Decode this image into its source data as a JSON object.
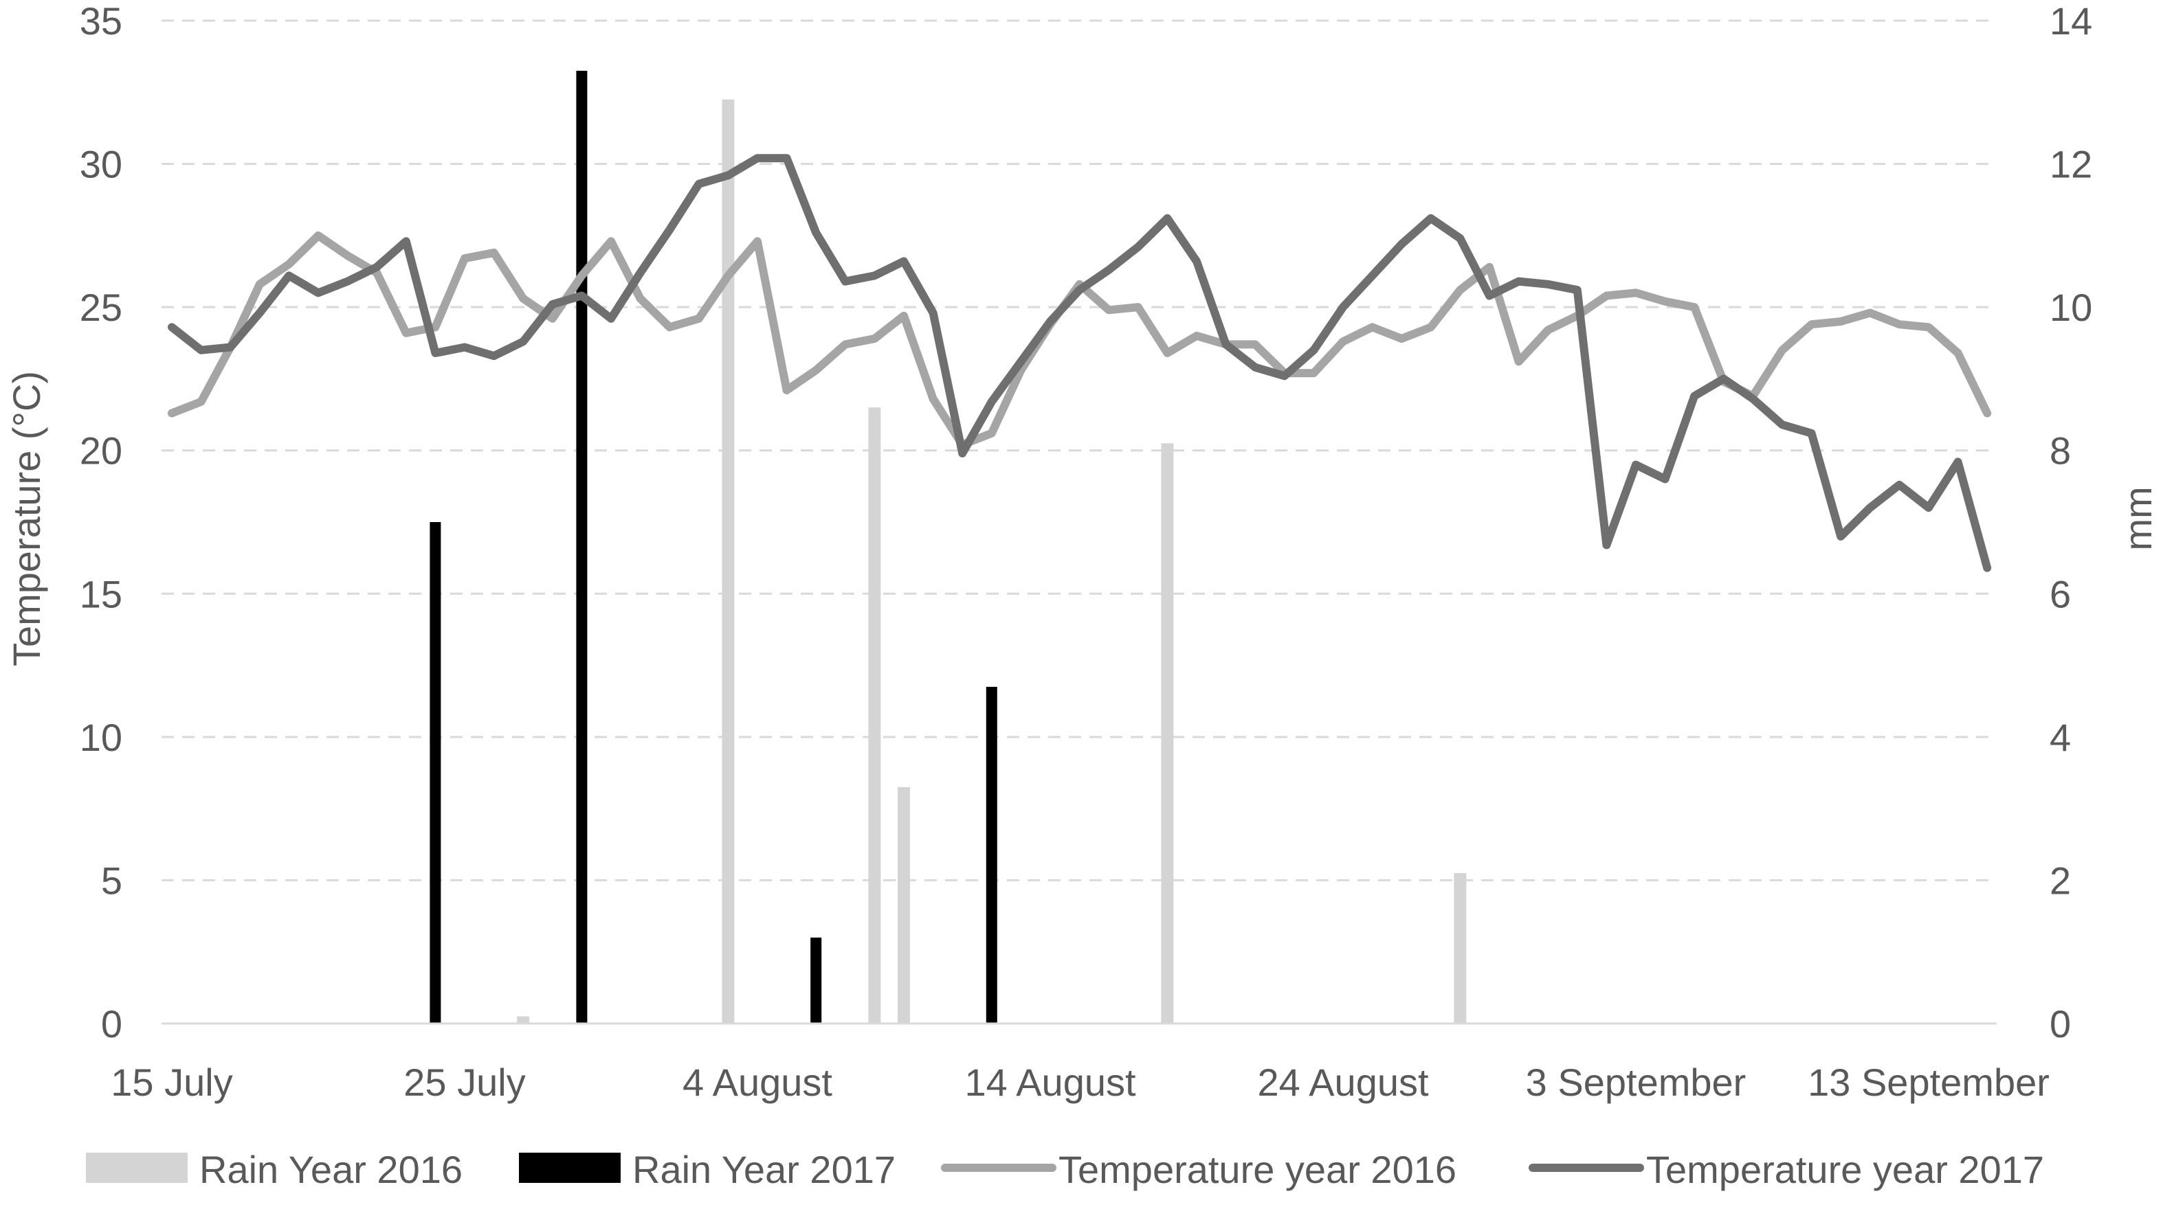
{
  "chart_data": {
    "type": "bar+line",
    "title": "",
    "x_axis": {
      "tick_labels": [
        "15 July",
        "25 July",
        "4 August",
        "14 August",
        "24 August",
        "3 September",
        "13 September"
      ],
      "start_date": "15 July",
      "days": 62
    },
    "y_left": {
      "label": "Temperature (°C)",
      "range": [
        0,
        35
      ],
      "ticks": [
        "0",
        "5",
        "10",
        "15",
        "20",
        "25",
        "30",
        "35"
      ]
    },
    "y_right": {
      "label": "mm",
      "range": [
        0,
        14
      ],
      "ticks": [
        "0",
        "2",
        "4",
        "6",
        "8",
        "10",
        "12",
        "14"
      ]
    },
    "grid": "horizontal dashed",
    "legend": {
      "position": "bottom",
      "items": [
        {
          "label": "Rain Year 2016",
          "kind": "bar",
          "color": "#d4d4d4"
        },
        {
          "label": "Rain Year 2017",
          "kind": "bar",
          "color": "#000000"
        },
        {
          "label": "Temperature year 2016",
          "kind": "line",
          "color": "#a5a5a5"
        },
        {
          "label": "Temperature year 2017",
          "kind": "line",
          "color": "#6f6f6f"
        }
      ]
    },
    "series": [
      {
        "name": "Rain Year 2016",
        "kind": "bar",
        "axis": "right",
        "color": "#d4d4d4",
        "points": [
          {
            "date": "27 July",
            "mm": 0.1
          },
          {
            "date": "3 August",
            "mm": 12.9
          },
          {
            "date": "8 August",
            "mm": 8.6
          },
          {
            "date": "9 August",
            "mm": 3.3
          },
          {
            "date": "18 August",
            "mm": 8.1
          },
          {
            "date": "28 August",
            "mm": 2.1
          }
        ]
      },
      {
        "name": "Rain Year 2017",
        "kind": "bar",
        "axis": "right",
        "color": "#000000",
        "points": [
          {
            "date": "24 July",
            "mm": 7.0
          },
          {
            "date": "29 July",
            "mm": 13.3
          },
          {
            "date": "6 August",
            "mm": 1.2
          },
          {
            "date": "12 August",
            "mm": 4.7
          }
        ]
      },
      {
        "name": "Temperature year 2016",
        "kind": "line",
        "axis": "left",
        "color": "#a5a5a5",
        "values": [
          21.3,
          21.7,
          23.6,
          25.8,
          26.5,
          27.5,
          26.8,
          26.2,
          24.1,
          24.3,
          26.7,
          26.9,
          25.3,
          24.6,
          26.1,
          27.3,
          25.3,
          24.3,
          24.6,
          26.1,
          27.3,
          22.1,
          22.8,
          23.7,
          23.9,
          24.7,
          21.8,
          20.2,
          20.6,
          22.8,
          24.4,
          25.8,
          24.9,
          25.0,
          23.4,
          24.0,
          23.7,
          23.7,
          22.7,
          22.7,
          23.8,
          24.3,
          23.9,
          24.3,
          25.6,
          26.4,
          23.1,
          24.2,
          24.7,
          25.4,
          25.5,
          25.2,
          25.0,
          22.4,
          21.9,
          23.5,
          24.4,
          24.5,
          24.8,
          24.4,
          24.3,
          23.4,
          21.3
        ]
      },
      {
        "name": "Temperature year 2017",
        "kind": "line",
        "axis": "left",
        "color": "#6f6f6f",
        "values": [
          24.3,
          23.5,
          23.6,
          24.8,
          26.1,
          25.5,
          25.9,
          26.4,
          27.3,
          23.4,
          23.6,
          23.3,
          23.8,
          25.1,
          25.4,
          24.6,
          26.2,
          27.7,
          29.3,
          29.6,
          30.2,
          30.2,
          27.6,
          25.9,
          26.1,
          26.6,
          24.8,
          19.9,
          21.7,
          23.1,
          24.5,
          25.6,
          26.3,
          27.1,
          28.1,
          26.6,
          23.7,
          22.9,
          22.6,
          23.5,
          25.0,
          26.1,
          27.2,
          28.1,
          27.4,
          25.4,
          25.9,
          25.8,
          25.6,
          16.7,
          19.5,
          19.0,
          21.9,
          22.5,
          21.8,
          20.9,
          20.6,
          17.0,
          18.0,
          18.8,
          18.0,
          19.6,
          15.9
        ]
      }
    ]
  }
}
